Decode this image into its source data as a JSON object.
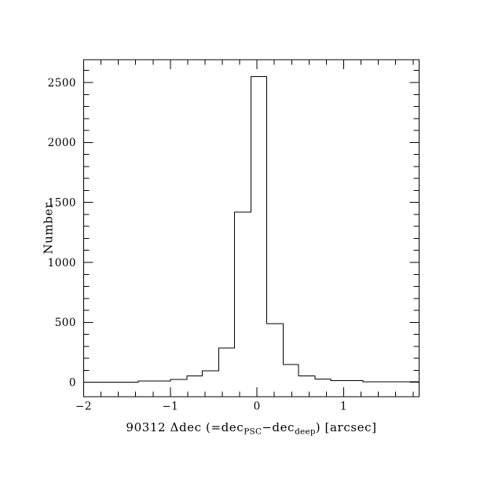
{
  "page": {
    "background": "#ffffff",
    "line_color": "#000000"
  },
  "chart_data": {
    "type": "histogram",
    "title": "",
    "xlabel_plain": "90312 Δdec (=dec_PSC−dec_deep) [arcsec]",
    "xlabel_parts": [
      {
        "text": "90312 Δdec (=dec",
        "sub": false
      },
      {
        "text": "PSC",
        "sub": true
      },
      {
        "text": "−dec",
        "sub": false
      },
      {
        "text": "deep",
        "sub": true
      },
      {
        "text": ") [arcsec]",
        "sub": false
      }
    ],
    "ylabel": "Number",
    "xlim": [
      -2.0,
      1.87
    ],
    "ylim": [
      -120,
      2690
    ],
    "x_minor_step": 0.2,
    "y_minor_step": 100,
    "x_major_ticks": [
      {
        "value": -2,
        "label": "−2"
      },
      {
        "value": -1,
        "label": "−1"
      },
      {
        "value": 0,
        "label": "0"
      },
      {
        "value": 1,
        "label": "1"
      }
    ],
    "y_major_ticks": [
      {
        "value": 0,
        "label": "0"
      },
      {
        "value": 500,
        "label": "500"
      },
      {
        "value": 1000,
        "label": "1000"
      },
      {
        "value": 1500,
        "label": "1500"
      },
      {
        "value": 2000,
        "label": "2000"
      },
      {
        "value": 2500,
        "label": "2500"
      }
    ],
    "bin_width_arcsec": 0.185,
    "peak_count": 2550,
    "grid": false,
    "legend": null,
    "bins": [
      {
        "left": -2.0,
        "right": -1.37,
        "count": 2
      },
      {
        "left": -1.37,
        "right": -1.0,
        "count": 12
      },
      {
        "left": -1.0,
        "right": -0.81,
        "count": 25
      },
      {
        "left": -0.81,
        "right": -0.63,
        "count": 52
      },
      {
        "left": -0.63,
        "right": -0.44,
        "count": 95
      },
      {
        "left": -0.44,
        "right": -0.26,
        "count": 285
      },
      {
        "left": -0.26,
        "right": -0.07,
        "count": 1420
      },
      {
        "left": -0.07,
        "right": 0.11,
        "count": 2550
      },
      {
        "left": 0.11,
        "right": 0.3,
        "count": 490
      },
      {
        "left": 0.3,
        "right": 0.48,
        "count": 150
      },
      {
        "left": 0.48,
        "right": 0.67,
        "count": 55
      },
      {
        "left": 0.67,
        "right": 0.85,
        "count": 27
      },
      {
        "left": 0.85,
        "right": 1.22,
        "count": 13
      },
      {
        "left": 1.22,
        "right": 1.87,
        "count": 4
      }
    ]
  }
}
